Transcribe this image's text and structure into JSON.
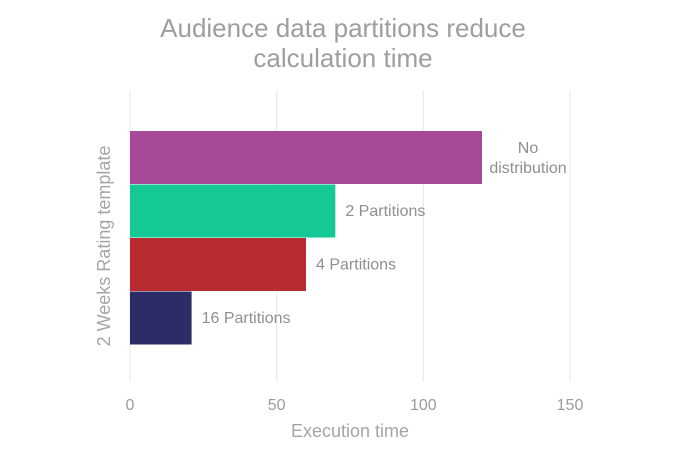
{
  "chart_data": {
    "type": "bar",
    "orientation": "horizontal",
    "title": [
      "Audience data partitions reduce",
      "calculation time"
    ],
    "xlabel": "Execution time",
    "ylabel": "2 Weeks Rating template",
    "xlim": [
      0,
      150
    ],
    "x_ticks": [
      0,
      50,
      100,
      150
    ],
    "grid": true,
    "categories": [
      "No distribution",
      "2 Partitions",
      "4 Partitions",
      "16 Partitions"
    ],
    "series": [
      {
        "name": "No distribution",
        "value": 120,
        "color": "#A64A98",
        "label_lines": [
          "No",
          "distribution"
        ]
      },
      {
        "name": "2 Partitions",
        "value": 70,
        "color": "#14C996",
        "label_lines": [
          "2 Partitions"
        ]
      },
      {
        "name": "4 Partitions",
        "value": 60,
        "color": "#B72B31",
        "label_lines": [
          "4 Partitions"
        ]
      },
      {
        "name": "16 Partitions",
        "value": 21,
        "color": "#2C2D66",
        "label_lines": [
          "16 Partitions"
        ]
      }
    ]
  }
}
